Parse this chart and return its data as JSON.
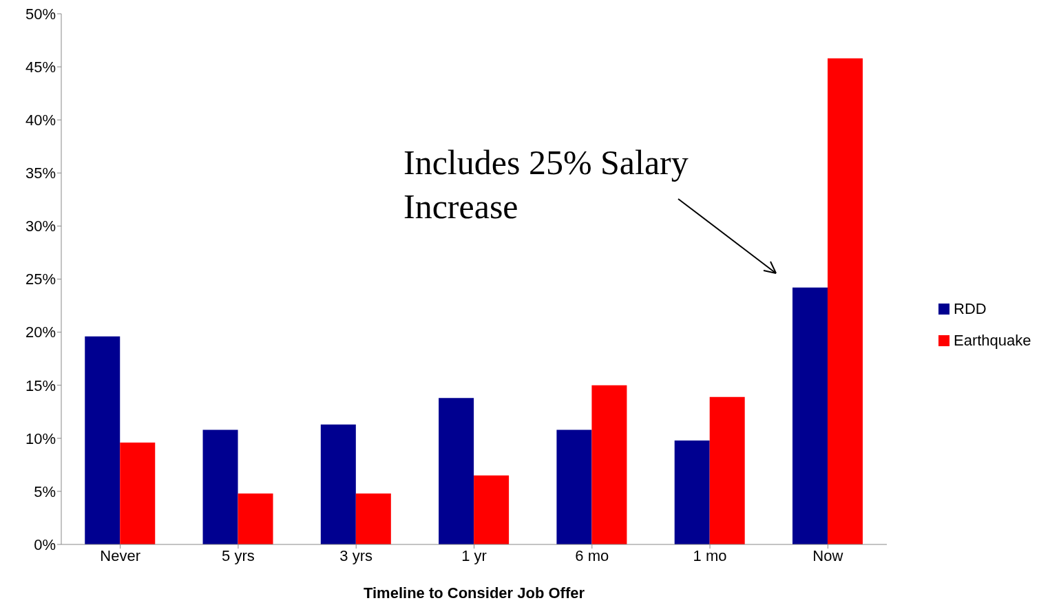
{
  "chart_data": {
    "type": "bar",
    "xlabel": "Timeline to Consider Job Offer",
    "categories": [
      "Never",
      "5 yrs",
      "3 yrs",
      "1 yr",
      "6 mo",
      "1 mo",
      "Now"
    ],
    "series": [
      {
        "name": "RDD",
        "color": "#000090",
        "values": [
          19.6,
          10.8,
          11.3,
          13.8,
          10.8,
          9.8,
          24.2
        ]
      },
      {
        "name": "Earthquake",
        "color": "#ff0000",
        "values": [
          9.6,
          4.8,
          4.8,
          6.5,
          15.0,
          13.9,
          45.8
        ]
      }
    ],
    "ylim": [
      0,
      50
    ],
    "yticks": [
      {
        "value": 0,
        "label": "0%"
      },
      {
        "value": 5,
        "label": "5%"
      },
      {
        "value": 10,
        "label": "10%"
      },
      {
        "value": 15,
        "label": "15%"
      },
      {
        "value": 20,
        "label": "20%"
      },
      {
        "value": 25,
        "label": "25%"
      },
      {
        "value": 30,
        "label": "30%"
      },
      {
        "value": 35,
        "label": "35%"
      },
      {
        "value": 40,
        "label": "40%"
      },
      {
        "value": 45,
        "label": "45%"
      },
      {
        "value": 50,
        "label": "50%"
      }
    ],
    "annotations": [
      "Includes 25% Salary Increase"
    ],
    "legend": "right",
    "grid": false
  }
}
